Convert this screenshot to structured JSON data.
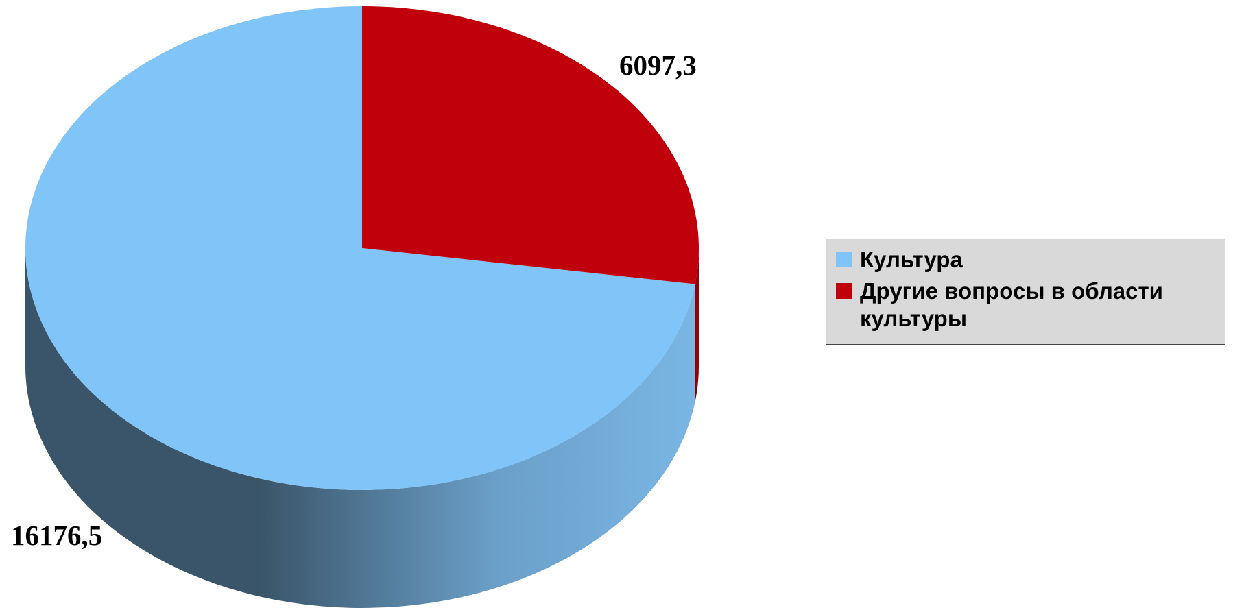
{
  "chart_data": {
    "type": "pie",
    "categories": [
      "Культура",
      "Другие вопросы в области культуры"
    ],
    "values": [
      16176.5,
      6097.3
    ],
    "value_labels": [
      "16176,5",
      "6097,3"
    ],
    "colors": [
      "#80c4f8",
      "#c0000b"
    ],
    "legend": "right"
  }
}
